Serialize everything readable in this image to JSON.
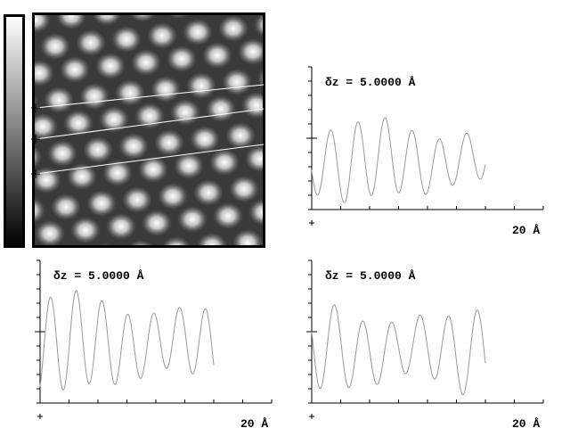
{
  "profiles": [
    {
      "scale": "δz = 5.0000 Å",
      "length": "20 Å"
    },
    {
      "scale": "δz = 5.0000 Å",
      "length": "20 Å"
    },
    {
      "scale": "δz = 5.0000 Å",
      "length": "20 Å"
    }
  ]
}
